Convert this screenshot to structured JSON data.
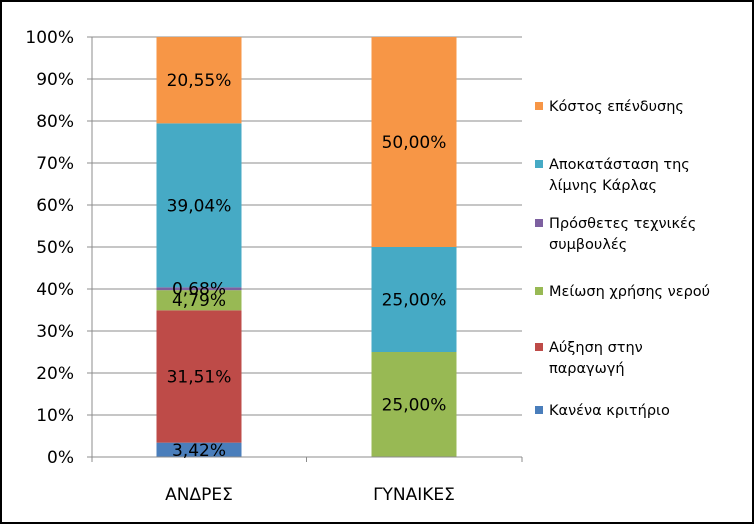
{
  "chart_data": {
    "type": "bar",
    "stacked": true,
    "percent": true,
    "categories": [
      "ΑΝΔΡΕΣ",
      "ΓΥΝΑΙΚΕΣ"
    ],
    "series": [
      {
        "name": "Κανένα κριτήριο",
        "color": "#4a7ebb",
        "values": [
          3.42,
          0
        ],
        "labels": [
          "3,42%",
          ""
        ]
      },
      {
        "name": "Αύξηση στην παραγωγή",
        "color": "#be4b48",
        "values": [
          31.51,
          0
        ],
        "labels": [
          "31,51%",
          ""
        ]
      },
      {
        "name": "Μείωση χρήσης νερού",
        "color": "#98b954",
        "values": [
          4.79,
          25
        ],
        "labels": [
          "4,79%",
          "25,00%"
        ]
      },
      {
        "name": "Πρόσθετες τεχνικές συμβουλές",
        "color": "#7d60a0",
        "values": [
          0.68,
          0
        ],
        "labels": [
          "0,68%",
          ""
        ]
      },
      {
        "name": "Αποκατάσταση της λίμνης Κάρλας",
        "color": "#46aac5",
        "values": [
          39.04,
          25
        ],
        "labels": [
          "39,04%",
          "25,00%"
        ]
      },
      {
        "name": "Κόστος επένδυσης",
        "color": "#f79646",
        "values": [
          20.55,
          50
        ],
        "labels": [
          "20,55%",
          "50,00%"
        ]
      }
    ],
    "legend_order": [
      5,
      4,
      3,
      2,
      1,
      0
    ],
    "legend_lines": [
      [
        "Κόστος επένδυσης"
      ],
      [
        "Αποκατάσταση της",
        "λίμνης Κάρλας"
      ],
      [
        "Πρόσθετες τεχνικές",
        "συμβουλές"
      ],
      [
        "Μείωση χρήσης νερού"
      ],
      [
        "Αύξηση στην",
        "παραγωγή"
      ],
      [
        "Κανένα κριτήριο"
      ]
    ],
    "y_ticks": [
      "0%",
      "10%",
      "20%",
      "30%",
      "40%",
      "50%",
      "60%",
      "70%",
      "80%",
      "90%",
      "100%"
    ],
    "ylim": [
      0,
      100
    ],
    "grid": true,
    "gridline_color": "#8c8c8c",
    "legend_position": "right",
    "title": "",
    "xlabel": "",
    "ylabel": ""
  }
}
